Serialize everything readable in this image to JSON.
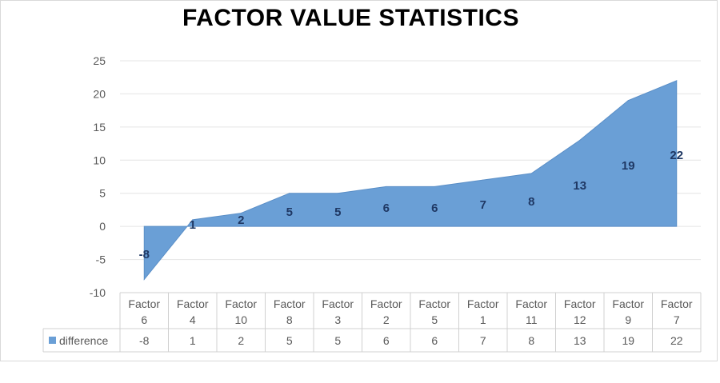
{
  "chart_data": {
    "type": "area",
    "title": "FACTOR VALUE STATISTICS",
    "categories": [
      [
        "Factor",
        "6"
      ],
      [
        "Factor",
        "4"
      ],
      [
        "Factor",
        "10"
      ],
      [
        "Factor",
        "8"
      ],
      [
        "Factor",
        "3"
      ],
      [
        "Factor",
        "2"
      ],
      [
        "Factor",
        "5"
      ],
      [
        "Factor",
        "1"
      ],
      [
        "Factor",
        "11"
      ],
      [
        "Factor",
        "12"
      ],
      [
        "Factor",
        "9"
      ],
      [
        "Factor",
        "7"
      ]
    ],
    "series": [
      {
        "name": "difference",
        "values": [
          -8,
          1,
          2,
          5,
          5,
          6,
          6,
          7,
          8,
          13,
          19,
          22
        ]
      }
    ],
    "ylim": [
      -10,
      25
    ],
    "yticks": [
      "-10",
      "-5",
      "0",
      "5",
      "10",
      "15",
      "20",
      "25"
    ],
    "data_labels": [
      "-8",
      "1",
      "2",
      "5",
      "5",
      "6",
      "6",
      "7",
      "8",
      "13",
      "19",
      "22"
    ],
    "grid": true,
    "legend": "data-table",
    "colors": {
      "area": "#6a9fd6",
      "area_stroke": "#5b8fc7",
      "label": "#1f3864",
      "grid": "#e4e4e4",
      "table_border": "#d0d0d0",
      "text": "#595959"
    }
  }
}
